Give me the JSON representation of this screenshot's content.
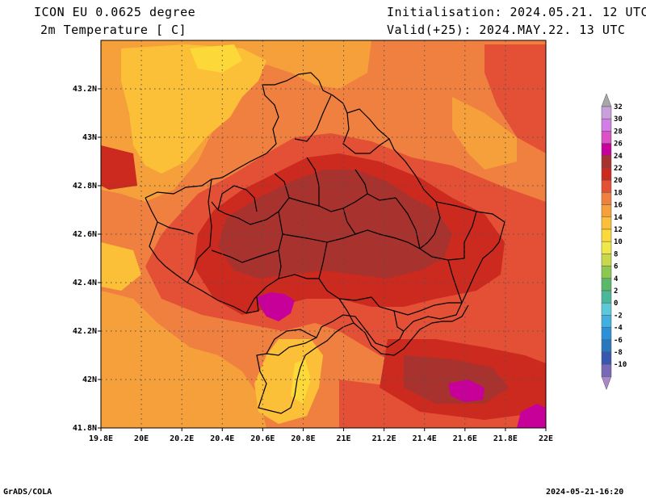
{
  "header": {
    "model": "ICON EU 0.0625 degree",
    "variable": "2m Temperature [ C]",
    "initialisation": "Initialisation: 2024.05.21. 12 UTC",
    "valid": "Valid(+25): 2024.MAY.22. 13 UTC"
  },
  "footer": {
    "left": "GrADS/COLA",
    "right": "2024-05-21-16:20"
  },
  "map": {
    "lon_labels": [
      "19.8E",
      "20E",
      "20.2E",
      "20.4E",
      "20.6E",
      "20.8E",
      "21E",
      "21.2E",
      "21.4E",
      "21.6E",
      "21.8E",
      "22E"
    ],
    "lat_labels": [
      "43.2N",
      "43N",
      "42.8N",
      "42.6N",
      "42.4N",
      "42.2N",
      "42N",
      "41.8N"
    ],
    "grid": true
  },
  "colorbar": {
    "labels": [
      "32",
      "30",
      "28",
      "26",
      "24",
      "22",
      "20",
      "18",
      "16",
      "14",
      "12",
      "10",
      "8",
      "6",
      "4",
      "2",
      "0",
      "-2",
      "-4",
      "-6",
      "-8",
      "-10"
    ],
    "colors": [
      "#c8a0dc",
      "#d27ee6",
      "#dc50c8",
      "#c8009a",
      "#a8322e",
      "#cc2a1e",
      "#e35035",
      "#f08040",
      "#f5a03a",
      "#fcc038",
      "#fcd838",
      "#f0e848",
      "#c8d848",
      "#8cc850",
      "#5ab868",
      "#48b898",
      "#5cc8d8",
      "#40b0e0",
      "#2c90d8",
      "#2878c0",
      "#3858b0",
      "#7868b8"
    ],
    "arrow_color": "#a8a8a8",
    "arrow_low_color": "#a888c8"
  },
  "palette": {
    "t24": "#a8322e",
    "t22": "#cc2a1e",
    "t20": "#e35035",
    "t18": "#f08040",
    "t16": "#f5a03a",
    "t14": "#fcc038",
    "t12": "#fcd838",
    "t26": "#c8009a"
  }
}
